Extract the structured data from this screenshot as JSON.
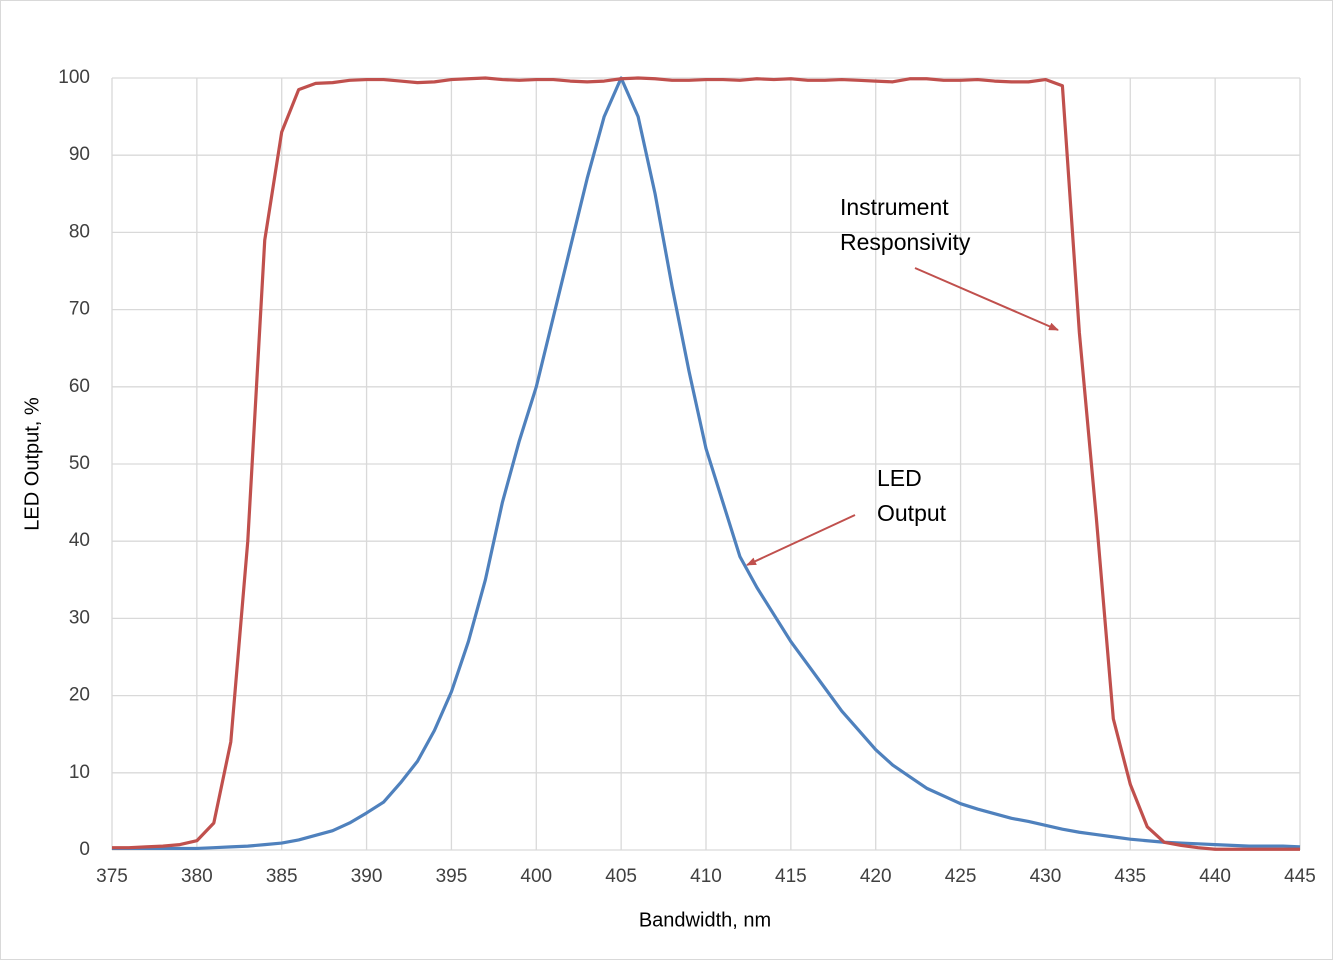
{
  "chart_data": {
    "type": "line",
    "x_label": "Bandwidth, nm",
    "y_label": "LED Output, %",
    "x": [
      375,
      376,
      377,
      378,
      379,
      380,
      381,
      382,
      383,
      384,
      385,
      386,
      387,
      388,
      389,
      390,
      391,
      392,
      393,
      394,
      395,
      396,
      397,
      398,
      399,
      400,
      401,
      402,
      403,
      404,
      405,
      406,
      407,
      408,
      409,
      410,
      411,
      412,
      413,
      414,
      415,
      416,
      417,
      418,
      419,
      420,
      421,
      422,
      423,
      424,
      425,
      426,
      427,
      428,
      429,
      430,
      431,
      432,
      433,
      434,
      435,
      436,
      437,
      438,
      439,
      440,
      441,
      442,
      443,
      444,
      445
    ],
    "series": [
      {
        "color": "#4f81bd",
        "values": [
          0.2,
          0.2,
          0.2,
          0.2,
          0.2,
          0.2,
          0.3,
          0.4,
          0.5,
          0.7,
          0.9,
          1.3,
          1.9,
          2.5,
          3.5,
          4.8,
          6.2,
          8.7,
          11.5,
          15.5,
          20.5,
          27,
          35,
          45,
          53,
          60,
          69,
          78,
          87,
          95,
          100,
          95,
          85,
          73,
          62,
          52,
          45,
          38,
          34,
          30.5,
          27,
          24,
          21,
          18,
          15.5,
          13,
          11,
          9.5,
          8,
          7,
          6,
          5.3,
          4.7,
          4.1,
          3.7,
          3.2,
          2.7,
          2.3,
          2,
          1.7,
          1.4,
          1.2,
          1,
          0.9,
          0.8,
          0.7,
          0.6,
          0.5,
          0.5,
          0.5,
          0.4
        ]
      },
      {
        "color": "#c0504d",
        "values": [
          0.3,
          0.3,
          0.4,
          0.5,
          0.7,
          1.2,
          3.5,
          14,
          40,
          79,
          93,
          98.5,
          99.3,
          99.4,
          99.7,
          99.8,
          99.8,
          99.6,
          99.4,
          99.5,
          99.8,
          99.9,
          100,
          99.8,
          99.7,
          99.8,
          99.8,
          99.6,
          99.5,
          99.6,
          99.9,
          100,
          99.9,
          99.7,
          99.7,
          99.8,
          99.8,
          99.7,
          99.9,
          99.8,
          99.9,
          99.7,
          99.7,
          99.8,
          99.7,
          99.6,
          99.5,
          99.9,
          99.9,
          99.7,
          99.7,
          99.8,
          99.6,
          99.5,
          99.5,
          99.8,
          99,
          67,
          43,
          17,
          8.5,
          3,
          1,
          0.6,
          0.3,
          0.1,
          0.1,
          0.1,
          0.1,
          0.1,
          0.1
        ]
      }
    ],
    "annotations": [
      [
        "Instrument",
        "Responsivity"
      ],
      [
        "LED",
        "Output"
      ]
    ],
    "xlim": [
      375,
      445
    ],
    "xticks": [
      375,
      380,
      385,
      390,
      395,
      400,
      405,
      410,
      415,
      420,
      425,
      430,
      435,
      440,
      445
    ],
    "ylim": [
      0,
      100
    ],
    "yticks": [
      0,
      10,
      20,
      30,
      40,
      50,
      60,
      70,
      80,
      90,
      100
    ],
    "grid": true
  }
}
